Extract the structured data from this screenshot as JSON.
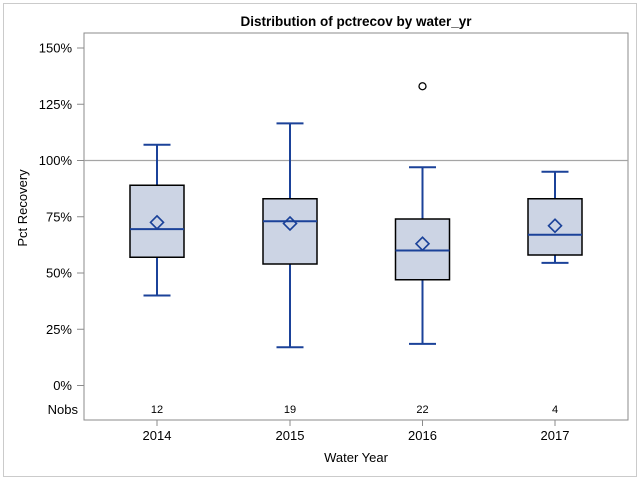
{
  "chart_data": {
    "type": "box",
    "title": "Distribution of pctrecov by water_yr",
    "xlabel": "Water Year",
    "ylabel": "Pct Recovery",
    "nobs_label": "Nobs",
    "grid": "off",
    "legend": "none",
    "y_axis": {
      "min": 0,
      "max": 150,
      "unit": "%",
      "ticks": [
        {
          "value": 0,
          "label": "0%"
        },
        {
          "value": 25,
          "label": "25%"
        },
        {
          "value": 50,
          "label": "50%"
        },
        {
          "value": 75,
          "label": "75%"
        },
        {
          "value": 100,
          "label": "100%"
        },
        {
          "value": 125,
          "label": "125%"
        },
        {
          "value": 150,
          "label": "150%"
        }
      ]
    },
    "reference_line": 100,
    "categories": [
      "2014",
      "2015",
      "2016",
      "2017"
    ],
    "series": [
      {
        "category": "2014",
        "nobs": "12",
        "whisker_low": 40,
        "q1": 57,
        "median": 69.5,
        "q3": 89,
        "whisker_high": 107,
        "mean": 72.5,
        "outliers": []
      },
      {
        "category": "2015",
        "nobs": "19",
        "whisker_low": 17,
        "q1": 54,
        "median": 73,
        "q3": 83,
        "whisker_high": 116.5,
        "mean": 72,
        "outliers": []
      },
      {
        "category": "2016",
        "nobs": "22",
        "whisker_low": 18.5,
        "q1": 47,
        "median": 60,
        "q3": 74,
        "whisker_high": 97,
        "mean": 63,
        "outliers": [
          133
        ]
      },
      {
        "category": "2017",
        "nobs": "4",
        "whisker_low": 54.5,
        "q1": 58,
        "median": 67,
        "q3": 83,
        "whisker_high": 95,
        "mean": 71,
        "outliers": []
      }
    ],
    "colors": {
      "box_fill": "#ccd4e4",
      "box_border": "#000000",
      "line": "#1b4299",
      "frame": "#8b8b8b",
      "reference_line": "#a5a5a5",
      "outlier_stroke": "#000000",
      "outer_border": "#cbcbcb",
      "text": "#000000",
      "background": "#ffffff"
    }
  }
}
